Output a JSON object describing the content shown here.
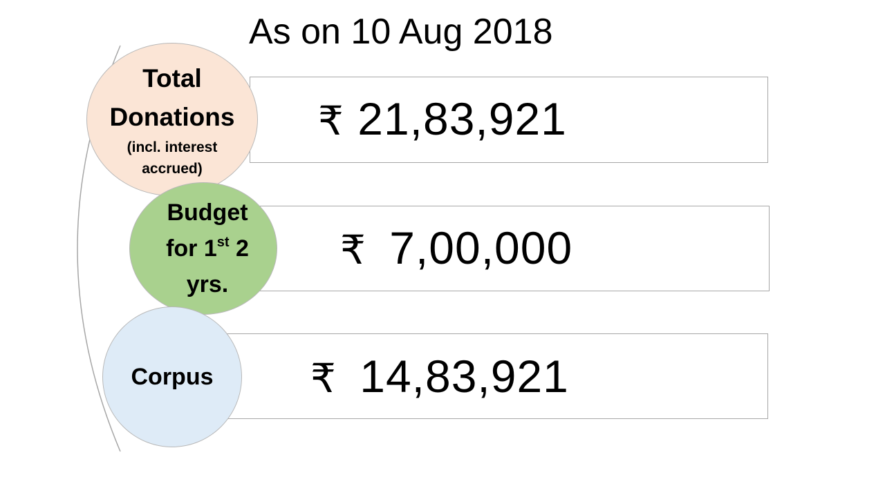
{
  "title": "As on 10 Aug 2018",
  "colors": {
    "donations_circle": "#fbe5d6",
    "budget_circle": "#a9d18e",
    "corpus_circle": "#deebf7",
    "box_border": "#a6a6a6",
    "connector": "#a6a6a6"
  },
  "items": [
    {
      "label_lines": [
        "Total",
        "Donations"
      ],
      "sub_lines": [
        "(incl. interest",
        "accrued)"
      ],
      "currency": "₹",
      "value": "21,83,921"
    },
    {
      "label_line1": "Budget",
      "label_line2_pre": "for 1",
      "label_line2_sup": "st",
      "label_line2_post": " 2",
      "label_line3": "yrs.",
      "currency": "₹",
      "value": "7,00,000"
    },
    {
      "label": "Corpus",
      "currency": "₹",
      "value": "14,83,921"
    }
  ]
}
